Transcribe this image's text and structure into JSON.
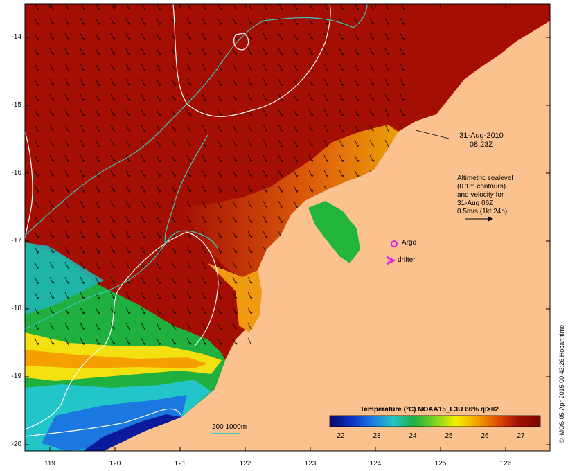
{
  "map": {
    "type": "sea-surface-temperature",
    "lat_range": [
      -20.1,
      -13.6
    ],
    "lon_range": [
      118.6,
      126.7
    ],
    "y_ticks": [
      "-14",
      "-15",
      "-16",
      "-17",
      "-18",
      "-19",
      "-20"
    ],
    "x_ticks": [
      "119",
      "120",
      "121",
      "122",
      "123",
      "124",
      "125",
      "126"
    ],
    "colors": {
      "land": "#fbc28f",
      "warm": "#a50f03",
      "mid": "#e86a0c",
      "cool_green": "#22b53d",
      "cyan": "#1fb5b0",
      "deep_blue": "#0a1a9a",
      "contour": "#ffffff",
      "isobath": "#3ec8c0"
    }
  },
  "timestamp": {
    "date": "31-Aug-2010",
    "time": "08:23Z"
  },
  "annotation": {
    "line1": "Altimetric sealevel",
    "line2": "(0.1m contours)",
    "line3": "and velocity for",
    "line4": "31-Aug 06Z",
    "line5": "0.5m/s (1kt 24h)"
  },
  "markers": {
    "argo_label": "Argo",
    "argo_icon": "circle-marker",
    "drifter_label": "drifter",
    "drifter_icon": "chevron-marker",
    "argo_color": "#e020e0",
    "drifter_color": "#e020e0"
  },
  "isobath_label": "200  1000m",
  "legend": {
    "title": "Temperature (°C) NOAA15_L3U 66% ql>=2",
    "ticks": [
      "22",
      "23",
      "24",
      "25",
      "26",
      "27"
    ],
    "colorscale": [
      "#08086b",
      "#0a2fc0",
      "#1a78e0",
      "#22c5c8",
      "#20b040",
      "#7ed320",
      "#f5f000",
      "#f5a000",
      "#e04a08",
      "#a00e02",
      "#7a0a00"
    ]
  },
  "credit": "© IMOS 05-Apr-2015 00:43:26 Hobart time"
}
